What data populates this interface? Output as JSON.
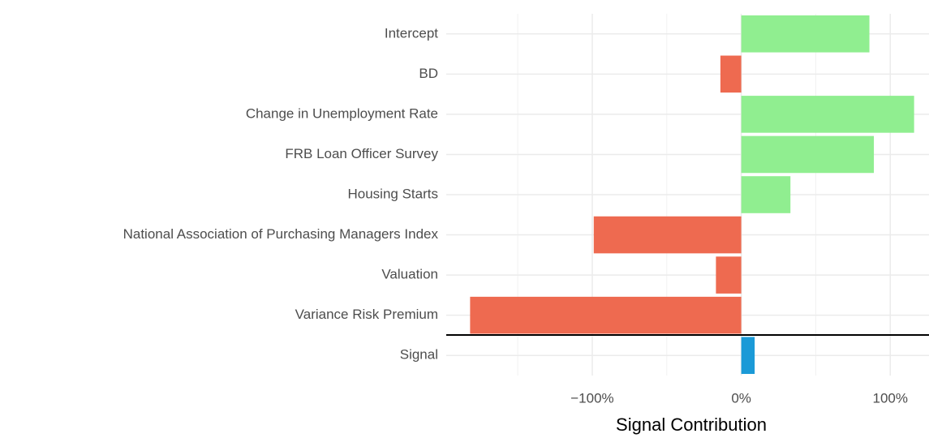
{
  "chart_data": {
    "type": "bar",
    "orientation": "horizontal",
    "x_label": "Signal Contribution",
    "categories": [
      "Intercept",
      "BD",
      "Change in Unemployment Rate",
      "FRB Loan Officer Survey",
      "Housing Starts",
      "National Association of Purchasing Managers Index",
      "Valuation",
      "Variance Risk Premium",
      "Signal"
    ],
    "values": [
      86,
      -14,
      116,
      89,
      33,
      -99,
      -17,
      -182,
      9
    ],
    "colors": [
      "#90ee90",
      "#ee6a50",
      "#90ee90",
      "#90ee90",
      "#90ee90",
      "#ee6a50",
      "#ee6a50",
      "#ee6a50",
      "#1b9ad7"
    ],
    "xlim": [
      -198,
      126
    ],
    "xticks": [
      {
        "value": -100,
        "label": "−100%"
      },
      {
        "value": 0,
        "label": "0%"
      },
      {
        "value": 100,
        "label": "100%"
      }
    ],
    "xminorticks": [
      -150,
      -50,
      50
    ],
    "grid": true
  }
}
